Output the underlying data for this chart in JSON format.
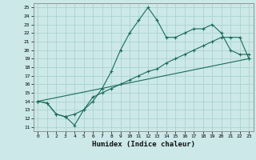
{
  "xlabel": "Humidex (Indice chaleur)",
  "bg_color": "#cce8e8",
  "line_color": "#1a6b5a",
  "grid_color": "#aad4d0",
  "xlim": [
    -0.5,
    23.5
  ],
  "ylim": [
    10.5,
    25.5
  ],
  "yticks": [
    11,
    12,
    13,
    14,
    15,
    16,
    17,
    18,
    19,
    20,
    21,
    22,
    23,
    24,
    25
  ],
  "xticks": [
    0,
    1,
    2,
    3,
    4,
    5,
    6,
    7,
    8,
    9,
    10,
    11,
    12,
    13,
    14,
    15,
    16,
    17,
    18,
    19,
    20,
    21,
    22,
    23
  ],
  "line1_x": [
    0,
    1,
    2,
    3,
    4,
    5,
    6,
    7,
    8,
    9,
    10,
    11,
    12,
    13,
    14,
    15,
    16,
    17,
    18,
    19,
    20,
    21,
    22,
    23
  ],
  "line1_y": [
    14.0,
    13.8,
    12.5,
    12.2,
    11.2,
    13.0,
    14.0,
    15.5,
    17.5,
    20.0,
    22.0,
    23.5,
    25.0,
    23.5,
    21.5,
    21.5,
    22.0,
    22.5,
    22.5,
    23.0,
    22.0,
    20.0,
    19.5,
    19.5
  ],
  "line2_x": [
    0,
    1,
    2,
    3,
    4,
    5,
    6,
    7,
    8,
    9,
    10,
    11,
    12,
    13,
    14,
    15,
    16,
    17,
    18,
    19,
    20,
    21,
    22,
    23
  ],
  "line2_y": [
    14.0,
    13.8,
    12.5,
    12.2,
    12.5,
    13.0,
    14.5,
    15.0,
    15.5,
    16.0,
    16.5,
    17.0,
    17.5,
    17.8,
    18.5,
    19.0,
    19.5,
    20.0,
    20.5,
    21.0,
    21.5,
    21.5,
    21.5,
    19.0
  ],
  "line3_x": [
    0,
    23
  ],
  "line3_y": [
    14.0,
    19.0
  ]
}
